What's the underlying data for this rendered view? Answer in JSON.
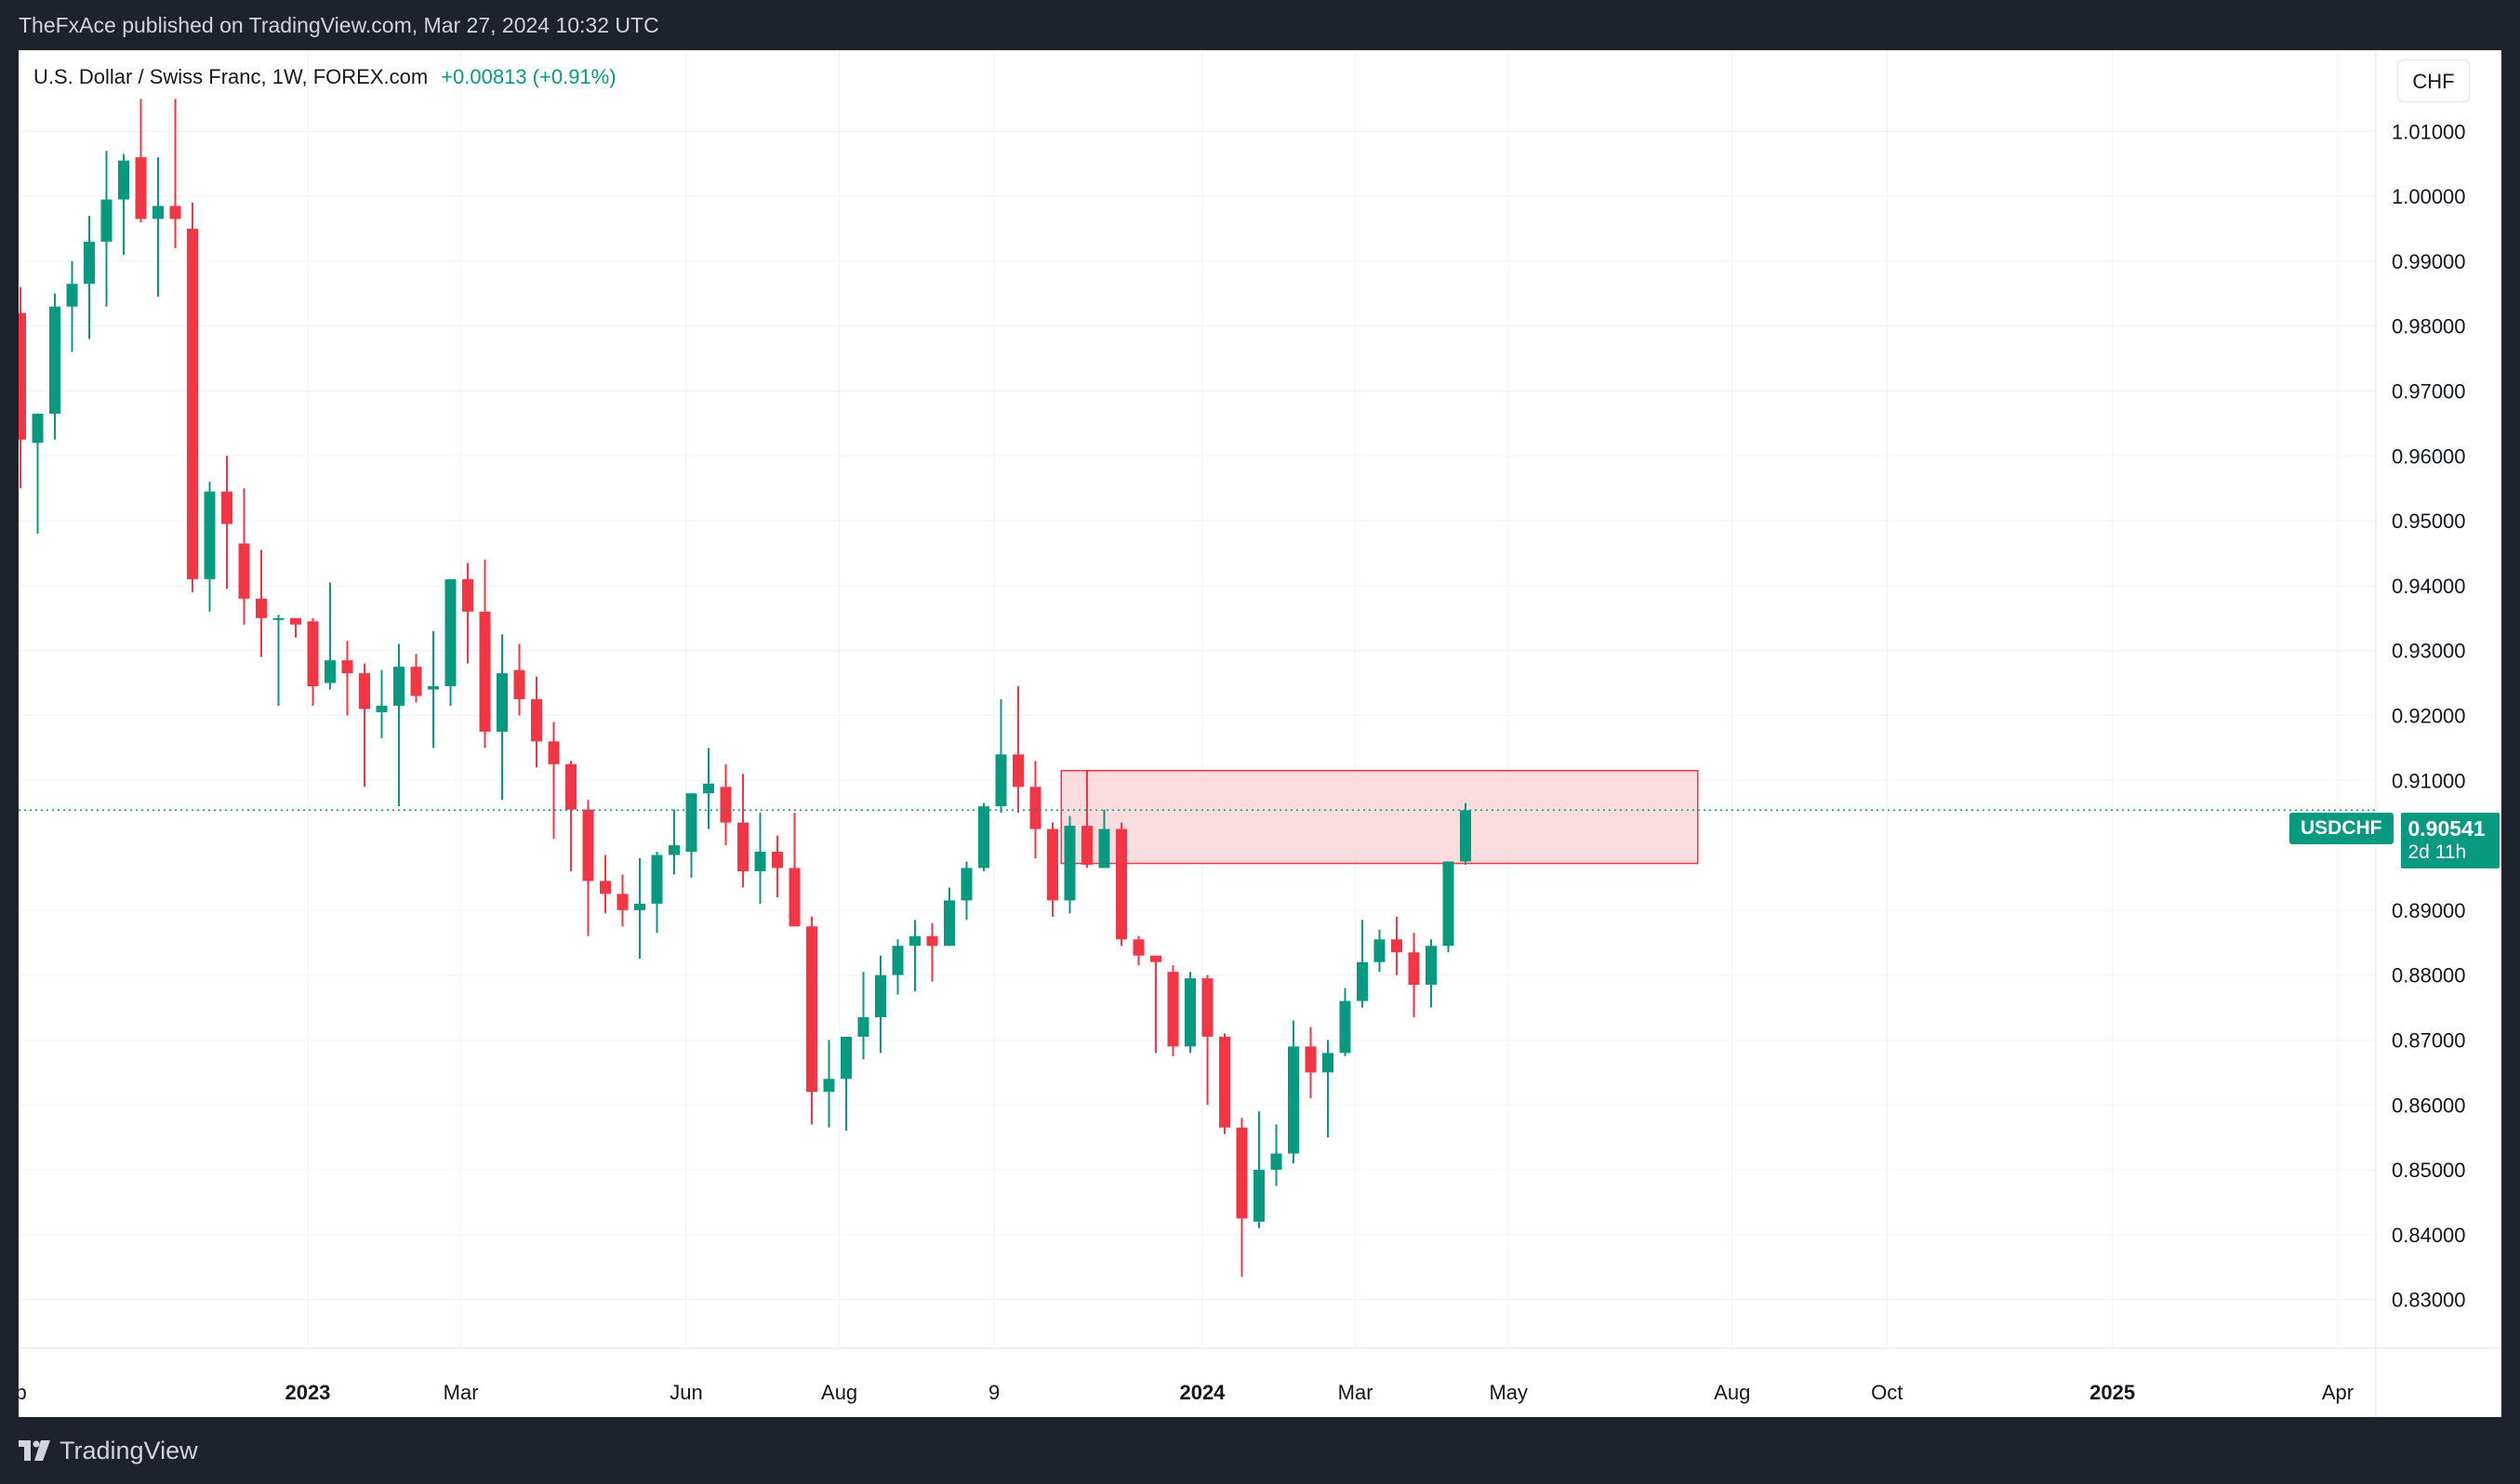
{
  "header": {
    "publish_line": "TheFxAce published on TradingView.com, Mar 27, 2024 10:32 UTC"
  },
  "legend": {
    "symbol": "U.S. Dollar / Swiss Franc, 1W, FOREX.com",
    "change": "+0.00813 (+0.91%)"
  },
  "currency_button": "CHF",
  "price_tag": {
    "symbol": "USDCHF",
    "price": "0.90541",
    "countdown": "2d 11h"
  },
  "footer": {
    "brand": "TradingView"
  },
  "colors": {
    "up": "#089981",
    "down": "#f23645",
    "zone_fill": "#f9d5d8",
    "zone_stroke": "#f23645",
    "grid": "#f0f3fa",
    "axis_text": "#131722"
  },
  "chart_data": {
    "type": "candlestick",
    "y_axis": {
      "range": [
        0.8225,
        1.0225
      ],
      "ticks": [
        "1.01000",
        "1.00000",
        "0.99000",
        "0.98000",
        "0.97000",
        "0.96000",
        "0.95000",
        "0.94000",
        "0.93000",
        "0.92000",
        "0.91000",
        "0.89000",
        "0.88000",
        "0.87000",
        "0.86000",
        "0.85000",
        "0.84000",
        "0.83000"
      ]
    },
    "x_axis": {
      "labels": [
        {
          "text": "ep",
          "index": -0.3,
          "bold": false
        },
        {
          "text": "2023",
          "index": 16.7,
          "bold": true
        },
        {
          "text": "Mar",
          "index": 25.6,
          "bold": false
        },
        {
          "text": "Jun",
          "index": 38.7,
          "bold": false
        },
        {
          "text": "Aug",
          "index": 47.6,
          "bold": false
        },
        {
          "text": "9",
          "index": 56.6,
          "bold": false
        },
        {
          "text": "2024",
          "index": 68.7,
          "bold": true
        },
        {
          "text": "Mar",
          "index": 77.6,
          "bold": false
        },
        {
          "text": "May",
          "index": 86.5,
          "bold": false
        },
        {
          "text": "Aug",
          "index": 99.5,
          "bold": false
        },
        {
          "text": "Oct",
          "index": 108.5,
          "bold": false
        },
        {
          "text": "2025",
          "index": 121.6,
          "bold": true
        },
        {
          "text": "Apr",
          "index": 134.7,
          "bold": false
        }
      ]
    },
    "current_price": 0.90541,
    "supply_zone": {
      "from_index": 60.5,
      "to_index": 97.5,
      "top": 0.9115,
      "bottom": 0.8972
    },
    "candles": [
      {
        "o": 0.982,
        "h": 0.986,
        "l": 0.955,
        "c": 0.9625
      },
      {
        "o": 0.962,
        "h": 0.9665,
        "l": 0.948,
        "c": 0.9665
      },
      {
        "o": 0.9665,
        "h": 0.985,
        "l": 0.9625,
        "c": 0.983
      },
      {
        "o": 0.983,
        "h": 0.99,
        "l": 0.976,
        "c": 0.9865
      },
      {
        "o": 0.9865,
        "h": 0.997,
        "l": 0.978,
        "c": 0.993
      },
      {
        "o": 0.993,
        "h": 1.007,
        "l": 0.983,
        "c": 0.9995
      },
      {
        "o": 0.9995,
        "h": 1.0065,
        "l": 0.991,
        "c": 1.0055
      },
      {
        "o": 1.006,
        "h": 1.015,
        "l": 0.996,
        "c": 0.9965
      },
      {
        "o": 0.9965,
        "h": 1.006,
        "l": 0.9845,
        "c": 0.9985
      },
      {
        "o": 0.9985,
        "h": 1.015,
        "l": 0.992,
        "c": 0.9965
      },
      {
        "o": 0.995,
        "h": 0.999,
        "l": 0.939,
        "c": 0.941
      },
      {
        "o": 0.941,
        "h": 0.956,
        "l": 0.936,
        "c": 0.9545
      },
      {
        "o": 0.9545,
        "h": 0.96,
        "l": 0.9395,
        "c": 0.9495
      },
      {
        "o": 0.9465,
        "h": 0.955,
        "l": 0.934,
        "c": 0.938
      },
      {
        "o": 0.938,
        "h": 0.9455,
        "l": 0.929,
        "c": 0.935
      },
      {
        "o": 0.935,
        "h": 0.9355,
        "l": 0.9215,
        "c": 0.935
      },
      {
        "o": 0.935,
        "h": 0.9345,
        "l": 0.932,
        "c": 0.934
      },
      {
        "o": 0.9345,
        "h": 0.935,
        "l": 0.9215,
        "c": 0.9245
      },
      {
        "o": 0.925,
        "h": 0.9405,
        "l": 0.924,
        "c": 0.9285
      },
      {
        "o": 0.9285,
        "h": 0.9315,
        "l": 0.92,
        "c": 0.9265
      },
      {
        "o": 0.9265,
        "h": 0.928,
        "l": 0.909,
        "c": 0.921
      },
      {
        "o": 0.9205,
        "h": 0.927,
        "l": 0.9165,
        "c": 0.9215
      },
      {
        "o": 0.9215,
        "h": 0.931,
        "l": 0.906,
        "c": 0.9275
      },
      {
        "o": 0.9275,
        "h": 0.9295,
        "l": 0.922,
        "c": 0.923
      },
      {
        "o": 0.924,
        "h": 0.933,
        "l": 0.915,
        "c": 0.9245
      },
      {
        "o": 0.9245,
        "h": 0.941,
        "l": 0.9215,
        "c": 0.941
      },
      {
        "o": 0.941,
        "h": 0.9435,
        "l": 0.928,
        "c": 0.936
      },
      {
        "o": 0.936,
        "h": 0.944,
        "l": 0.915,
        "c": 0.9175
      },
      {
        "o": 0.9175,
        "h": 0.9325,
        "l": 0.907,
        "c": 0.9265
      },
      {
        "o": 0.927,
        "h": 0.931,
        "l": 0.92,
        "c": 0.9225
      },
      {
        "o": 0.9225,
        "h": 0.926,
        "l": 0.912,
        "c": 0.916
      },
      {
        "o": 0.916,
        "h": 0.919,
        "l": 0.901,
        "c": 0.9125
      },
      {
        "o": 0.9125,
        "h": 0.913,
        "l": 0.896,
        "c": 0.9055
      },
      {
        "o": 0.9055,
        "h": 0.907,
        "l": 0.886,
        "c": 0.8945
      },
      {
        "o": 0.8945,
        "h": 0.8985,
        "l": 0.8895,
        "c": 0.8925
      },
      {
        "o": 0.8925,
        "h": 0.8955,
        "l": 0.8875,
        "c": 0.89
      },
      {
        "o": 0.89,
        "h": 0.898,
        "l": 0.8825,
        "c": 0.891
      },
      {
        "o": 0.891,
        "h": 0.899,
        "l": 0.8865,
        "c": 0.8985
      },
      {
        "o": 0.8985,
        "h": 0.9055,
        "l": 0.8955,
        "c": 0.9
      },
      {
        "o": 0.899,
        "h": 0.908,
        "l": 0.895,
        "c": 0.908
      },
      {
        "o": 0.908,
        "h": 0.915,
        "l": 0.9025,
        "c": 0.9095
      },
      {
        "o": 0.909,
        "h": 0.9125,
        "l": 0.9,
        "c": 0.9035
      },
      {
        "o": 0.9035,
        "h": 0.911,
        "l": 0.8935,
        "c": 0.896
      },
      {
        "o": 0.896,
        "h": 0.905,
        "l": 0.891,
        "c": 0.899
      },
      {
        "o": 0.899,
        "h": 0.9015,
        "l": 0.892,
        "c": 0.8965
      },
      {
        "o": 0.8965,
        "h": 0.905,
        "l": 0.8875,
        "c": 0.8875
      },
      {
        "o": 0.8875,
        "h": 0.889,
        "l": 0.857,
        "c": 0.862
      },
      {
        "o": 0.862,
        "h": 0.87,
        "l": 0.8565,
        "c": 0.864
      },
      {
        "o": 0.864,
        "h": 0.8705,
        "l": 0.856,
        "c": 0.8705
      },
      {
        "o": 0.8705,
        "h": 0.8805,
        "l": 0.867,
        "c": 0.8735
      },
      {
        "o": 0.8735,
        "h": 0.883,
        "l": 0.868,
        "c": 0.88
      },
      {
        "o": 0.88,
        "h": 0.8855,
        "l": 0.877,
        "c": 0.8845
      },
      {
        "o": 0.8845,
        "h": 0.8885,
        "l": 0.8775,
        "c": 0.886
      },
      {
        "o": 0.886,
        "h": 0.888,
        "l": 0.879,
        "c": 0.8845
      },
      {
        "o": 0.8845,
        "h": 0.8935,
        "l": 0.8845,
        "c": 0.8915
      },
      {
        "o": 0.8915,
        "h": 0.8975,
        "l": 0.8885,
        "c": 0.8965
      },
      {
        "o": 0.8965,
        "h": 0.9065,
        "l": 0.896,
        "c": 0.906
      },
      {
        "o": 0.906,
        "h": 0.9225,
        "l": 0.905,
        "c": 0.914
      },
      {
        "o": 0.914,
        "h": 0.9245,
        "l": 0.905,
        "c": 0.909
      },
      {
        "o": 0.909,
        "h": 0.913,
        "l": 0.898,
        "c": 0.9025
      },
      {
        "o": 0.9025,
        "h": 0.9035,
        "l": 0.889,
        "c": 0.8915
      },
      {
        "o": 0.8915,
        "h": 0.9045,
        "l": 0.8895,
        "c": 0.903
      },
      {
        "o": 0.903,
        "h": 0.9115,
        "l": 0.8965,
        "c": 0.897
      },
      {
        "o": 0.8965,
        "h": 0.9055,
        "l": 0.8965,
        "c": 0.9025
      },
      {
        "o": 0.9025,
        "h": 0.9035,
        "l": 0.8845,
        "c": 0.8855
      },
      {
        "o": 0.8855,
        "h": 0.886,
        "l": 0.8815,
        "c": 0.883
      },
      {
        "o": 0.883,
        "h": 0.883,
        "l": 0.868,
        "c": 0.882
      },
      {
        "o": 0.8805,
        "h": 0.8815,
        "l": 0.8675,
        "c": 0.869
      },
      {
        "o": 0.869,
        "h": 0.8805,
        "l": 0.868,
        "c": 0.8795
      },
      {
        "o": 0.8795,
        "h": 0.88,
        "l": 0.86,
        "c": 0.8705
      },
      {
        "o": 0.8705,
        "h": 0.871,
        "l": 0.8555,
        "c": 0.8565
      },
      {
        "o": 0.8565,
        "h": 0.858,
        "l": 0.8335,
        "c": 0.8425
      },
      {
        "o": 0.842,
        "h": 0.859,
        "l": 0.841,
        "c": 0.85
      },
      {
        "o": 0.85,
        "h": 0.857,
        "l": 0.8475,
        "c": 0.8525
      },
      {
        "o": 0.8525,
        "h": 0.873,
        "l": 0.851,
        "c": 0.869
      },
      {
        "o": 0.869,
        "h": 0.872,
        "l": 0.861,
        "c": 0.865
      },
      {
        "o": 0.865,
        "h": 0.87,
        "l": 0.855,
        "c": 0.868
      },
      {
        "o": 0.868,
        "h": 0.878,
        "l": 0.8675,
        "c": 0.876
      },
      {
        "o": 0.876,
        "h": 0.8885,
        "l": 0.875,
        "c": 0.882
      },
      {
        "o": 0.882,
        "h": 0.887,
        "l": 0.8805,
        "c": 0.8855
      },
      {
        "o": 0.8855,
        "h": 0.889,
        "l": 0.88,
        "c": 0.8835
      },
      {
        "o": 0.8835,
        "h": 0.8865,
        "l": 0.8735,
        "c": 0.8785
      },
      {
        "o": 0.8785,
        "h": 0.8855,
        "l": 0.875,
        "c": 0.8845
      },
      {
        "o": 0.8845,
        "h": 0.897,
        "l": 0.8835,
        "c": 0.8975
      },
      {
        "o": 0.8975,
        "h": 0.9065,
        "l": 0.897,
        "c": 0.9054
      }
    ]
  }
}
